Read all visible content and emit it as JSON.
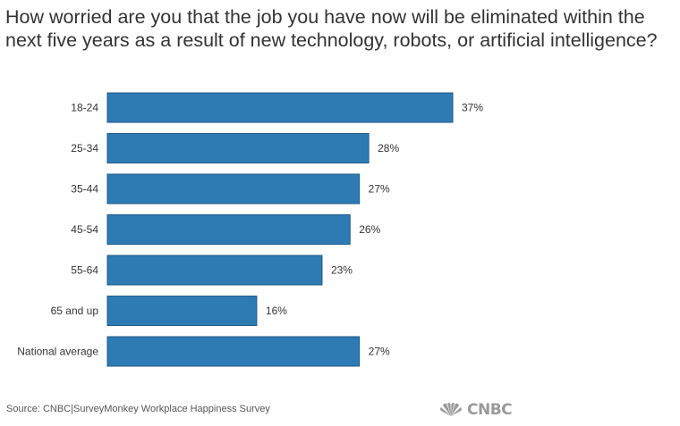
{
  "title": "How worried are you that the job you have now will be eliminated within the next five years as a result of new technology, robots, or artificial intelligence?",
  "source": "Source: CNBC|SurveyMonkey Workplace Happiness Survey",
  "logo": {
    "text": "CNBC",
    "icon": "nbc-peacock-icon"
  },
  "colors": {
    "bar": "#2e7bb4",
    "bar_stroke": "#1f5a86",
    "text": "#333333"
  },
  "chart_data": {
    "type": "bar",
    "orientation": "horizontal",
    "categories": [
      "18-24",
      "25-34",
      "35-44",
      "45-54",
      "55-64",
      "65 and up",
      "National average"
    ],
    "values": [
      37,
      28,
      27,
      26,
      23,
      16,
      27
    ],
    "value_labels": [
      "37%",
      "28%",
      "27%",
      "26%",
      "23%",
      "16%",
      "27%"
    ],
    "xlim": [
      0,
      37
    ],
    "grid": false,
    "legend": "none"
  }
}
